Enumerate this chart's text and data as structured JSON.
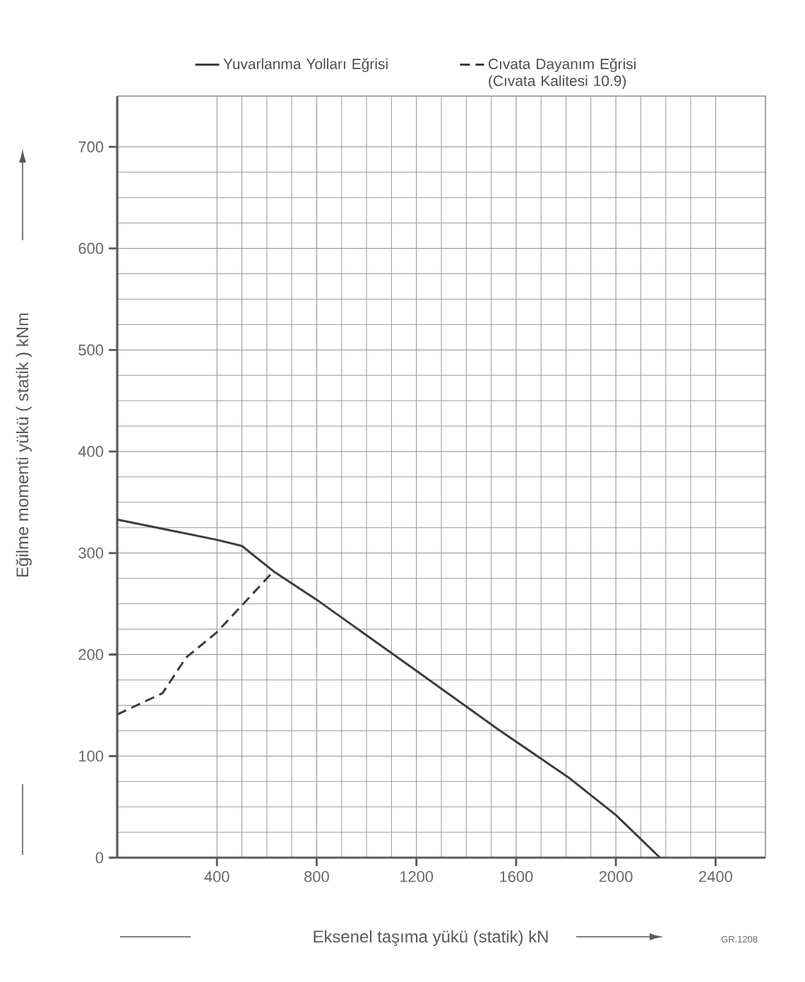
{
  "chart_data": {
    "type": "line",
    "xlabel": "Eksenel taşıma yükü  (statik) kN",
    "ylabel": "Eğilme momenti yükü  ( statik )  kNm",
    "annotations": [
      "GR.1208"
    ],
    "xlim": [
      0,
      2600
    ],
    "ylim": [
      0,
      750
    ],
    "xticks": [
      400,
      800,
      1200,
      1600,
      2000,
      2400
    ],
    "yticks": [
      0,
      100,
      200,
      300,
      400,
      500,
      600,
      700
    ],
    "grid": true,
    "legend": "top",
    "marker": "none",
    "series": [
      {
        "name": "Yuvarlanma Yolları Eğrisi",
        "color": "#3c3c3c",
        "line_style": "solid",
        "x": [
          0,
          200,
          400,
          500,
          627,
          800,
          1200,
          1524,
          1810,
          2000,
          2177
        ],
        "values": [
          333,
          323,
          313,
          307,
          282,
          254,
          184,
          127,
          79,
          42,
          0
        ]
      },
      {
        "name": "Cıvata Dayanım Eğrisi (Cıvata Kalitesi 10.9)",
        "color": "#3c3c3c",
        "line_style": "dashed",
        "x": [
          0,
          182,
          276,
          400,
          627
        ],
        "values": [
          141,
          162,
          197,
          222,
          282
        ]
      }
    ]
  }
}
